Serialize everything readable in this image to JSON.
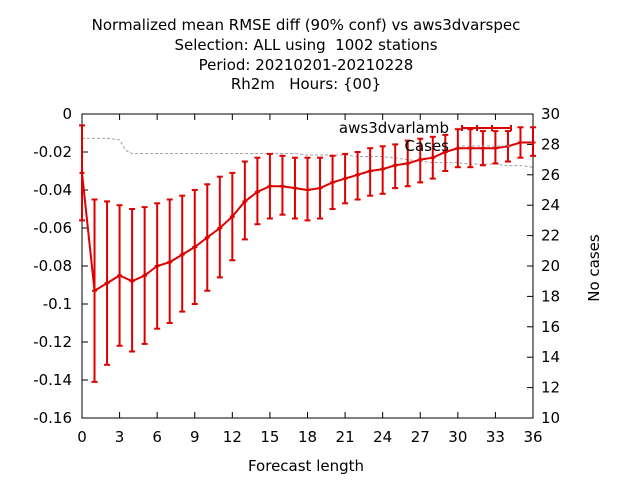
{
  "title_lines": [
    "Normalized mean RMSE diff (90% conf) vs aws3dvarspec",
    "Selection: ALL using  1002 stations",
    "Period: 20210201-20210228",
    "Rh2m   Hours: {00}"
  ],
  "chart_data": {
    "type": "line",
    "xlabel": "Forecast length",
    "ylabel": "",
    "y2label": "No cases",
    "xlim": [
      0,
      36
    ],
    "ylim": [
      -0.16,
      0
    ],
    "y2lim": [
      10,
      30
    ],
    "xticks": [
      0,
      3,
      6,
      9,
      12,
      15,
      18,
      21,
      24,
      27,
      30,
      33,
      36
    ],
    "yticks": [
      0,
      -0.02,
      -0.04,
      -0.06,
      -0.08,
      -0.1,
      -0.12,
      -0.14,
      -0.16
    ],
    "y2ticks": [
      10,
      12,
      14,
      16,
      18,
      20,
      22,
      24,
      26,
      28,
      30
    ],
    "ytick_labels": [
      "0",
      "-0.02",
      "-0.04",
      "-0.06",
      "-0.08",
      "-0.1",
      "-0.12",
      "-0.14",
      "-0.16"
    ],
    "legend_position": "top-right",
    "series": [
      {
        "name": "aws3dvarlamb",
        "color": "#dd0000",
        "x": [
          0,
          1,
          2,
          3,
          4,
          5,
          6,
          7,
          8,
          9,
          10,
          11,
          12,
          13,
          14,
          15,
          16,
          17,
          18,
          19,
          20,
          21,
          22,
          23,
          24,
          25,
          26,
          27,
          28,
          29,
          30,
          31,
          32,
          33,
          34,
          35,
          36
        ],
        "y": [
          -0.031,
          -0.093,
          -0.089,
          -0.085,
          -0.088,
          -0.085,
          -0.08,
          -0.078,
          -0.074,
          -0.07,
          -0.065,
          -0.06,
          -0.054,
          -0.046,
          -0.041,
          -0.038,
          -0.038,
          -0.039,
          -0.04,
          -0.039,
          -0.036,
          -0.034,
          -0.032,
          -0.03,
          -0.029,
          -0.027,
          -0.026,
          -0.024,
          -0.023,
          -0.02,
          -0.018,
          -0.018,
          -0.018,
          -0.018,
          -0.017,
          -0.015,
          -0.015
        ],
        "y_low": [
          -0.056,
          -0.141,
          -0.132,
          -0.122,
          -0.125,
          -0.121,
          -0.113,
          -0.11,
          -0.104,
          -0.1,
          -0.093,
          -0.086,
          -0.077,
          -0.066,
          -0.058,
          -0.055,
          -0.053,
          -0.055,
          -0.056,
          -0.055,
          -0.05,
          -0.047,
          -0.045,
          -0.043,
          -0.042,
          -0.039,
          -0.038,
          -0.036,
          -0.034,
          -0.03,
          -0.028,
          -0.028,
          -0.027,
          -0.026,
          -0.025,
          -0.023,
          -0.022
        ],
        "y_high": [
          -0.006,
          -0.045,
          -0.046,
          -0.048,
          -0.05,
          -0.049,
          -0.047,
          -0.045,
          -0.043,
          -0.04,
          -0.037,
          -0.033,
          -0.031,
          -0.025,
          -0.023,
          -0.021,
          -0.022,
          -0.023,
          -0.023,
          -0.023,
          -0.022,
          -0.021,
          -0.02,
          -0.018,
          -0.017,
          -0.016,
          -0.014,
          -0.013,
          -0.012,
          -0.011,
          -0.008,
          -0.008,
          -0.009,
          -0.009,
          -0.009,
          -0.007,
          -0.007
        ]
      },
      {
        "name": "Cases",
        "color": "#a0a0a0",
        "axis": "y2",
        "x": [
          0,
          1,
          2,
          3,
          3.5,
          4,
          6,
          9,
          12,
          13,
          14,
          15,
          16,
          17,
          18,
          19,
          20,
          21,
          22,
          23,
          24,
          25,
          26,
          27,
          28,
          29,
          30,
          31,
          32,
          33,
          34,
          35,
          36
        ],
        "y": [
          28.4,
          28.4,
          28.4,
          28.3,
          27.6,
          27.4,
          27.4,
          27.4,
          27.4,
          27.4,
          27.4,
          27.4,
          27.4,
          27.4,
          27.3,
          27.3,
          27.3,
          27.3,
          27.2,
          27.2,
          27.2,
          27.1,
          27.0,
          26.9,
          26.8,
          26.8,
          26.8,
          26.7,
          26.7,
          26.7,
          26.6,
          26.6,
          26.5
        ]
      }
    ]
  }
}
